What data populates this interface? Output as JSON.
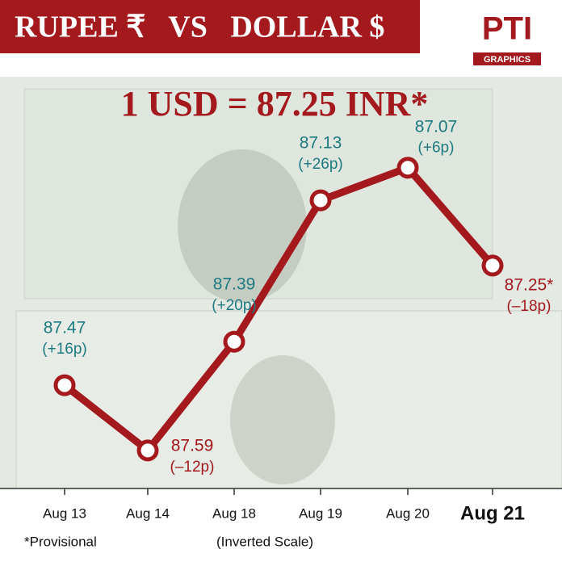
{
  "header": {
    "title": "RUPEE ₹   VS   DOLLAR $",
    "logo": "PTI",
    "logo_sub": "GRAPHICS"
  },
  "chart_data": {
    "type": "line",
    "title": "1 USD = 87.25 INR*",
    "categories": [
      "Aug 13",
      "Aug 14",
      "Aug 18",
      "Aug 19",
      "Aug 20",
      "Aug 21"
    ],
    "series": [
      {
        "name": "USD/INR",
        "color": "#a3191d",
        "values": [
          87.47,
          87.59,
          87.39,
          87.13,
          87.07,
          87.25
        ],
        "value_labels": [
          "87.47",
          "87.59",
          "87.39",
          "87.13",
          "87.07",
          "87.25*"
        ],
        "changes": [
          "(+16p)",
          "(–12p)",
          "(+20p)",
          "(+26p)",
          "(+6p)",
          "(–18p)"
        ],
        "label_colors": [
          "#1c7a80",
          "#a3191d",
          "#1c7a80",
          "#1c7a80",
          "#1c7a80",
          "#a3191d"
        ]
      }
    ],
    "ylim": [
      87.66,
      86.91
    ],
    "inverted_scale": true,
    "footnote": "*Provisional",
    "scale_note": "(Inverted Scale)"
  }
}
